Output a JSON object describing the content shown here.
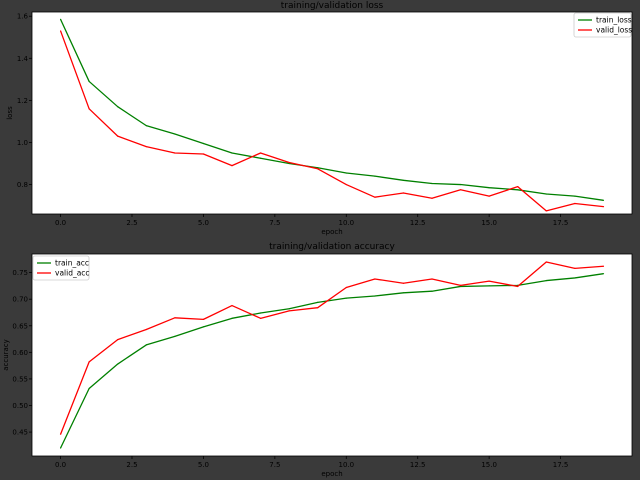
{
  "colors": {
    "train": "#008000",
    "valid": "#ff0000"
  },
  "chart_data": [
    {
      "type": "line",
      "title": "training/validation loss",
      "xlabel": "epoch",
      "ylabel": "loss",
      "xlim": [
        -1,
        20
      ],
      "ylim": [
        0.66,
        1.62
      ],
      "xticks": [
        0.0,
        2.5,
        5.0,
        7.5,
        10.0,
        12.5,
        15.0,
        17.5
      ],
      "xtick_labels": [
        "0.0",
        "2.5",
        "5.0",
        "7.5",
        "10.0",
        "12.5",
        "15.0",
        "17.5"
      ],
      "yticks": [
        0.8,
        1.0,
        1.2,
        1.4,
        1.6
      ],
      "ytick_labels": [
        "0.8",
        "1.0",
        "1.2",
        "1.4",
        "1.6"
      ],
      "legend_position": "top-right",
      "grid": false,
      "x": [
        0,
        1,
        2,
        3,
        4,
        5,
        6,
        7,
        8,
        9,
        10,
        11,
        12,
        13,
        14,
        15,
        16,
        17,
        18,
        19
      ],
      "series": [
        {
          "name": "train_loss",
          "color": "#008000",
          "values": [
            1.585,
            1.29,
            1.17,
            1.08,
            1.04,
            0.995,
            0.95,
            0.925,
            0.9,
            0.88,
            0.855,
            0.84,
            0.82,
            0.805,
            0.8,
            0.785,
            0.775,
            0.755,
            0.745,
            0.725
          ]
        },
        {
          "name": "valid_loss",
          "color": "#ff0000",
          "values": [
            1.53,
            1.16,
            1.03,
            0.98,
            0.95,
            0.945,
            0.89,
            0.95,
            0.905,
            0.875,
            0.8,
            0.74,
            0.76,
            0.735,
            0.775,
            0.745,
            0.79,
            0.675,
            0.71,
            0.695
          ]
        }
      ]
    },
    {
      "type": "line",
      "title": "training/validation accuracy",
      "xlabel": "epoch",
      "ylabel": "accuracy",
      "xlim": [
        -1,
        20
      ],
      "ylim": [
        0.405,
        0.785
      ],
      "xticks": [
        0.0,
        2.5,
        5.0,
        7.5,
        10.0,
        12.5,
        15.0,
        17.5
      ],
      "xtick_labels": [
        "0.0",
        "2.5",
        "5.0",
        "7.5",
        "10.0",
        "12.5",
        "15.0",
        "17.5"
      ],
      "yticks": [
        0.45,
        0.5,
        0.55,
        0.6,
        0.65,
        0.7,
        0.75
      ],
      "ytick_labels": [
        "0.45",
        "0.50",
        "0.55",
        "0.60",
        "0.65",
        "0.70",
        "0.75"
      ],
      "legend_position": "top-left",
      "grid": false,
      "x": [
        0,
        1,
        2,
        3,
        4,
        5,
        6,
        7,
        8,
        9,
        10,
        11,
        12,
        13,
        14,
        15,
        16,
        17,
        18,
        19
      ],
      "series": [
        {
          "name": "train_acc",
          "color": "#008000",
          "values": [
            0.42,
            0.532,
            0.578,
            0.614,
            0.63,
            0.648,
            0.664,
            0.674,
            0.682,
            0.694,
            0.702,
            0.706,
            0.712,
            0.715,
            0.724,
            0.725,
            0.726,
            0.735,
            0.74,
            0.748
          ]
        },
        {
          "name": "valid_acc",
          "color": "#ff0000",
          "values": [
            0.446,
            0.582,
            0.624,
            0.643,
            0.665,
            0.662,
            0.688,
            0.664,
            0.678,
            0.684,
            0.722,
            0.738,
            0.73,
            0.738,
            0.726,
            0.734,
            0.724,
            0.77,
            0.758,
            0.762
          ]
        }
      ]
    }
  ]
}
